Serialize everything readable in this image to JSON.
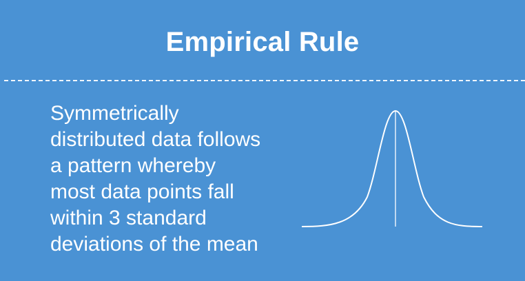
{
  "slide": {
    "title": "Empirical Rule",
    "body_lines": [
      "Symmetrically",
      "distributed data follows",
      "a pattern whereby",
      "most data points fall",
      "within 3 standard",
      "deviations of the mean"
    ],
    "graphic": "normal-distribution-bell-curve",
    "colors": {
      "background": "#4a92d4",
      "foreground": "#ffffff"
    }
  }
}
